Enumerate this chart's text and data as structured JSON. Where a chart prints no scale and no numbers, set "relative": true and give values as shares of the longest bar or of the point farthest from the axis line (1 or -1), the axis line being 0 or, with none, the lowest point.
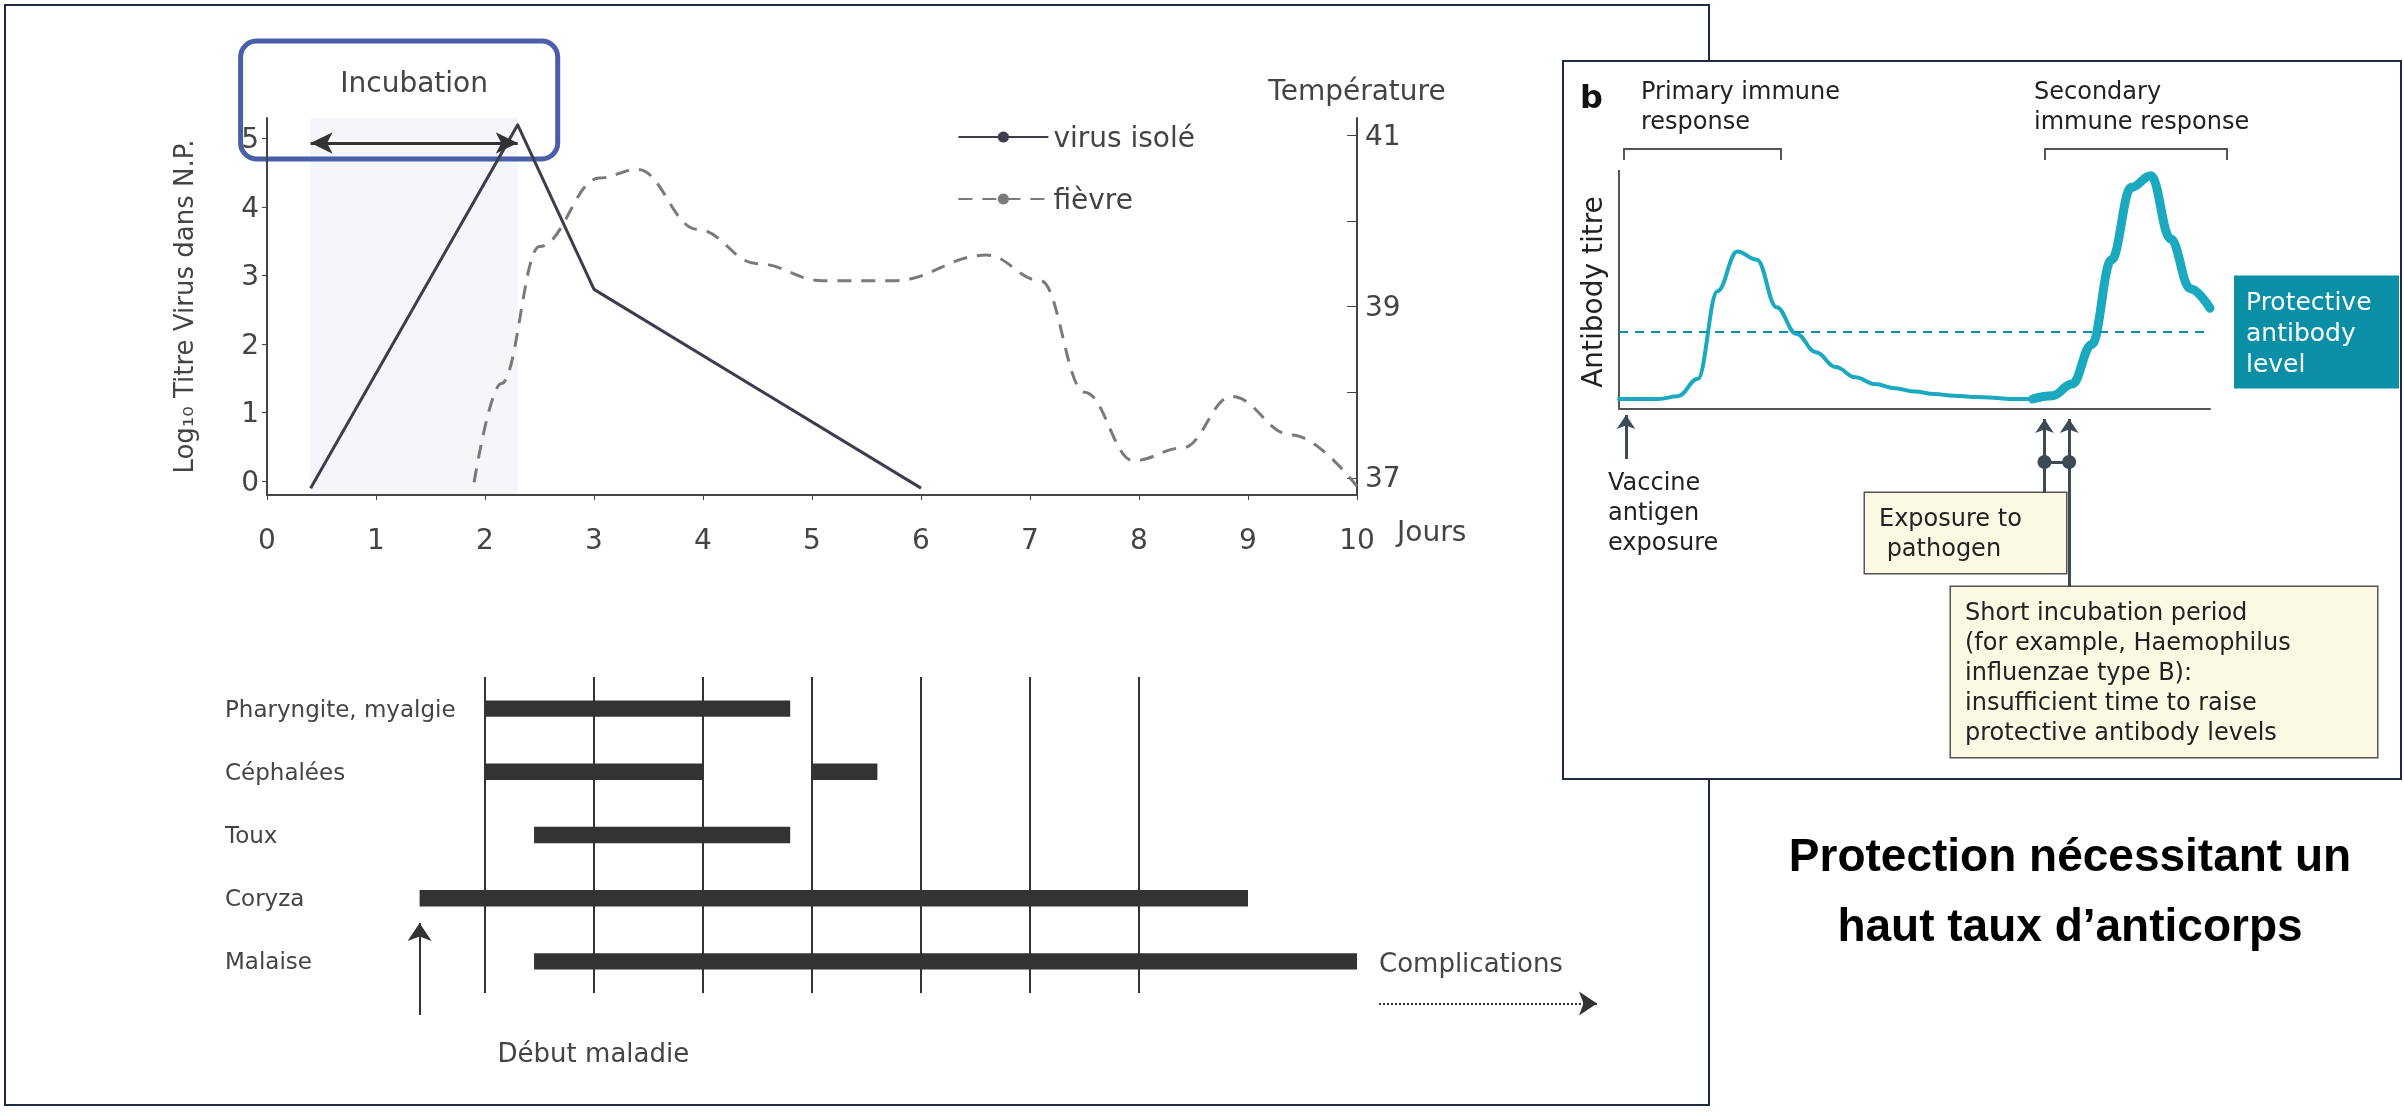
{
  "chart_data": [
    {
      "type": "line",
      "xlabel": "Jours",
      "ylabel": "Log₁₀ Titre Virus dans N.P.",
      "y2label": "Température",
      "xlim": [
        0,
        10
      ],
      "xticks": [
        0,
        1,
        2,
        3,
        4,
        5,
        6,
        7,
        8,
        9,
        10
      ],
      "ylim": [
        -0.2,
        5.3
      ],
      "yticks": [
        0,
        1,
        2,
        3,
        4,
        5
      ],
      "y2lim": [
        36.8,
        41.2
      ],
      "y2ticks": [
        37,
        {
          "value": 38,
          "label": null
        },
        39,
        {
          "value": 40,
          "label": null
        },
        41
      ],
      "grid": false,
      "legend": "top right",
      "marker": "none",
      "series": [
        {
          "name": "virus isolé",
          "color": "#3d3d4f",
          "line_style": "solid",
          "x": [
            0.4,
            2.3,
            3,
            6
          ],
          "values": [
            -0.1,
            5.2,
            2.8,
            -0.1
          ]
        },
        {
          "name": "fièvre",
          "color": "#7a7a7a",
          "line_style": "dashed",
          "axis": "y2",
          "x": [
            1.9,
            2.15,
            2.5,
            3.05,
            3.4,
            3.95,
            4.5,
            5.1,
            5.75,
            6.6,
            7.1,
            7.5,
            7.95,
            8.4,
            8.85,
            9.4,
            10
          ],
          "values": [
            36.95,
            38.1,
            39.7,
            40.5,
            40.6,
            39.9,
            39.5,
            39.3,
            39.3,
            39.6,
            39.3,
            38.0,
            37.2,
            37.35,
            37.95,
            37.5,
            36.9
          ]
        }
      ],
      "bands": [
        {
          "axis": "x",
          "from": 0.4,
          "to": 2.3,
          "label": "Incubation",
          "color": "#4a5fa8"
        }
      ]
    },
    {
      "type": "bar",
      "orientation": "horizontal",
      "categories": [
        "Pharyngite, myalgie",
        "Céphalées",
        "Toux",
        "Coryza",
        "Malaise"
      ],
      "xlim": [
        0,
        10
      ],
      "xticks": [
        {
          "value": 2,
          "label": null
        },
        {
          "value": 3,
          "label": null
        },
        {
          "value": 4,
          "label": null
        },
        {
          "value": 5,
          "label": null
        },
        {
          "value": 6,
          "label": null
        },
        {
          "value": 7,
          "label": null
        },
        {
          "value": 8,
          "label": null
        }
      ],
      "tick_labels": "y",
      "grid": "x",
      "series": [
        {
          "color": "#333333",
          "base": [
            2,
            2,
            2.45,
            1.4,
            2.45
          ],
          "values": [
            2.8,
            2,
            2.35,
            7.6,
            7.55
          ]
        },
        {
          "color": "#333333",
          "base": [
            null,
            5,
            null,
            null,
            null
          ],
          "values": [
            null,
            0.6,
            null,
            null,
            null
          ]
        }
      ],
      "annotations": [
        "Début maladie",
        "Complications"
      ]
    },
    {
      "type": "line",
      "relative": true,
      "title": "b",
      "ylabel": "Antibody titre",
      "grid": false,
      "categories": [
        null,
        null,
        null,
        null,
        null,
        null,
        null,
        null,
        null,
        null,
        null,
        null,
        null,
        null,
        null,
        null,
        null,
        null,
        null,
        null,
        null,
        null,
        null,
        null,
        null,
        null,
        null,
        null,
        null,
        null,
        null
      ],
      "series": [
        {
          "color": "#1aa9bf",
          "values": [
            0.043,
            0.043,
            0.043,
            0.055,
            0.13,
            0.505,
            0.675,
            0.64,
            0.436,
            0.323,
            0.243,
            0.18,
            0.136,
            0.107,
            0.089,
            0.075,
            0.064,
            0.057,
            0.052,
            0.048,
            0.043,
            0.043,
            null,
            null,
            null,
            null,
            null,
            null,
            null,
            null,
            null
          ]
        },
        {
          "color": "#1aa9bf",
          "values": [
            null,
            null,
            null,
            null,
            null,
            null,
            null,
            null,
            null,
            null,
            null,
            null,
            null,
            null,
            null,
            null,
            null,
            null,
            null,
            null,
            null,
            0.043,
            0.057,
            0.107,
            0.277,
            0.64,
            0.95,
            1,
            0.73,
            0.516,
            0.432
          ]
        }
      ],
      "ref_lines": [
        {
          "axis": "y",
          "value": 0.325,
          "label": "Protective antibody level",
          "color": "#0a8fa6",
          "line_style": "dashed"
        }
      ],
      "annotations": [
        "Primary immune response",
        "Secondary immune response",
        "Vaccine antigen exposure",
        "Exposure to pathogen",
        "Short incubation period (for example, Haemophilus influenzae type B): insufficient time to raise protective antibody levels"
      ]
    },
    {
      "type": "other",
      "title": "Protection nécessitant un haut taux d’anticorps"
    }
  ]
}
